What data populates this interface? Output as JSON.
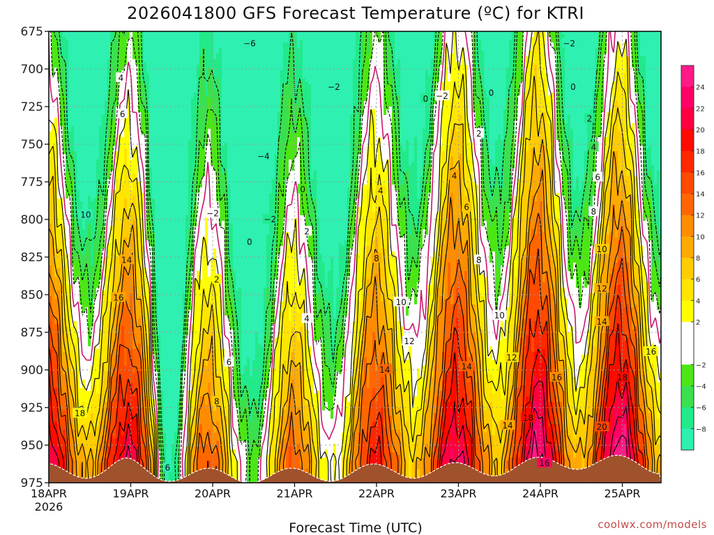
{
  "chart_data": {
    "type": "contour-filled",
    "title": "2026041800 GFS Forecast Temperature (ºC) for KTRI",
    "xlabel": "Forecast Time (UTC)",
    "credit": "coolwx.com/models",
    "x_ticks": [
      "18APR",
      "19APR",
      "20APR",
      "21APR",
      "22APR",
      "23APR",
      "24APR",
      "25APR"
    ],
    "x_year": "2026",
    "x_range_days": [
      0,
      7.5
    ],
    "y_ticks": [
      "675",
      "700",
      "725",
      "750",
      "775",
      "800",
      "825",
      "850",
      "875",
      "900",
      "925",
      "950",
      "975"
    ],
    "y_range_hPa": [
      675,
      975
    ],
    "color_levels": [
      {
        "min": -10,
        "max": -8,
        "color": "#2ef0b0"
      },
      {
        "min": -8,
        "max": -6,
        "color": "#22e98a"
      },
      {
        "min": -6,
        "max": -4,
        "color": "#3be04e"
      },
      {
        "min": -4,
        "max": -2,
        "color": "#4ce615"
      },
      {
        "min": -2,
        "max": 0,
        "color": "#ffffff"
      },
      {
        "min": 0,
        "max": 2,
        "color": "#ffffff"
      },
      {
        "min": 2,
        "max": 4,
        "color": "#ffff00"
      },
      {
        "min": 4,
        "max": 6,
        "color": "#ffe500"
      },
      {
        "min": 6,
        "max": 8,
        "color": "#ffcc00"
      },
      {
        "min": 8,
        "max": 10,
        "color": "#ffaa00"
      },
      {
        "min": 10,
        "max": 12,
        "color": "#ff8c00"
      },
      {
        "min": 12,
        "max": 14,
        "color": "#ff6600"
      },
      {
        "min": 14,
        "max": 16,
        "color": "#ff4a00"
      },
      {
        "min": 16,
        "max": 18,
        "color": "#ff2800"
      },
      {
        "min": 18,
        "max": 20,
        "color": "#ff0a00"
      },
      {
        "min": 20,
        "max": 22,
        "color": "#ff0040"
      },
      {
        "min": 22,
        "max": 24,
        "color": "#ff0066"
      },
      {
        "min": 24,
        "max": 26,
        "color": "#ff1a88"
      }
    ],
    "colorbar_labels": [
      "24",
      "22",
      "20",
      "18",
      "16",
      "14",
      "12",
      "10",
      "8",
      "6",
      "4",
      "2",
      "−2",
      "−4",
      "−6",
      "−8"
    ],
    "colorbar_label_values": [
      24,
      22,
      20,
      18,
      16,
      14,
      12,
      10,
      8,
      6,
      4,
      2,
      -2,
      -4,
      -6,
      -8
    ],
    "ground_color": "#a0522d",
    "freezing_line_color": "#c8146e",
    "contour_labels": [
      {
        "text": "−6",
        "day": 2.45,
        "p": 683
      },
      {
        "text": "−2",
        "day": 3.48,
        "p": 712
      },
      {
        "text": "−2",
        "day": 4.8,
        "p": 718
      },
      {
        "text": "−2",
        "day": 6.35,
        "p": 683
      },
      {
        "text": "0",
        "day": 4.6,
        "p": 720
      },
      {
        "text": "0",
        "day": 5.4,
        "p": 716
      },
      {
        "text": "0",
        "day": 6.4,
        "p": 712
      },
      {
        "text": "0",
        "day": 3.1,
        "p": 780
      },
      {
        "text": "0",
        "day": 2.45,
        "p": 815
      },
      {
        "text": "−2",
        "day": 2.0,
        "p": 796
      },
      {
        "text": "−4",
        "day": 2.62,
        "p": 758
      },
      {
        "text": "−2",
        "day": 2.7,
        "p": 800
      },
      {
        "text": "4",
        "day": 0.88,
        "p": 706
      },
      {
        "text": "6",
        "day": 0.9,
        "p": 730
      },
      {
        "text": "10",
        "day": 0.45,
        "p": 797
      },
      {
        "text": "14",
        "day": 0.95,
        "p": 827
      },
      {
        "text": "16",
        "day": 0.85,
        "p": 852
      },
      {
        "text": "18",
        "day": 0.38,
        "p": 929
      },
      {
        "text": "2",
        "day": 2.05,
        "p": 840
      },
      {
        "text": "6",
        "day": 2.2,
        "p": 895
      },
      {
        "text": "8",
        "day": 2.05,
        "p": 921
      },
      {
        "text": "6",
        "day": 1.45,
        "p": 965
      },
      {
        "text": "2",
        "day": 3.15,
        "p": 808
      },
      {
        "text": "4",
        "day": 3.15,
        "p": 866
      },
      {
        "text": "4",
        "day": 4.05,
        "p": 781
      },
      {
        "text": "8",
        "day": 4.0,
        "p": 826
      },
      {
        "text": "10",
        "day": 4.3,
        "p": 855
      },
      {
        "text": "12",
        "day": 4.4,
        "p": 881
      },
      {
        "text": "14",
        "day": 4.1,
        "p": 900
      },
      {
        "text": "2",
        "day": 5.25,
        "p": 743
      },
      {
        "text": "4",
        "day": 4.95,
        "p": 771
      },
      {
        "text": "6",
        "day": 5.1,
        "p": 792
      },
      {
        "text": "8",
        "day": 5.25,
        "p": 827
      },
      {
        "text": "10",
        "day": 5.5,
        "p": 864
      },
      {
        "text": "12",
        "day": 5.65,
        "p": 892
      },
      {
        "text": "14",
        "day": 5.1,
        "p": 898
      },
      {
        "text": "2",
        "day": 6.6,
        "p": 733
      },
      {
        "text": "4",
        "day": 6.65,
        "p": 752
      },
      {
        "text": "6",
        "day": 6.7,
        "p": 772
      },
      {
        "text": "8",
        "day": 6.65,
        "p": 795
      },
      {
        "text": "10",
        "day": 6.75,
        "p": 820
      },
      {
        "text": "12",
        "day": 6.75,
        "p": 846
      },
      {
        "text": "14",
        "day": 6.75,
        "p": 868
      },
      {
        "text": "16",
        "day": 7.35,
        "p": 888
      },
      {
        "text": "16",
        "day": 6.2,
        "p": 905
      },
      {
        "text": "18",
        "day": 7.0,
        "p": 905
      },
      {
        "text": "14",
        "day": 5.6,
        "p": 937
      },
      {
        "text": "18",
        "day": 5.85,
        "p": 932
      },
      {
        "text": "20",
        "day": 6.75,
        "p": 938
      },
      {
        "text": "16",
        "day": 6.05,
        "p": 962
      }
    ]
  }
}
